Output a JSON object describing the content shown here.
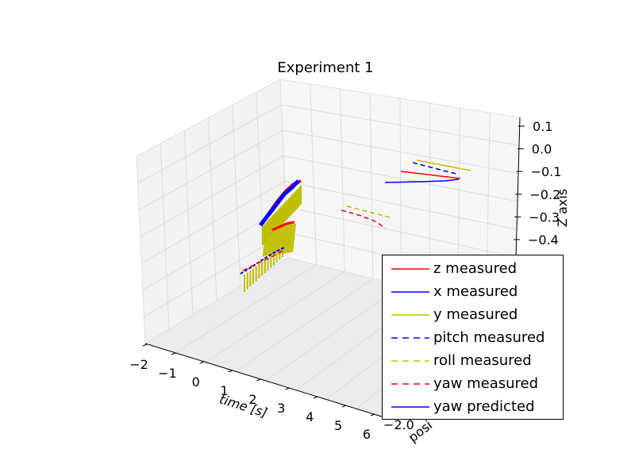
{
  "chart_data": {
    "type": "line-3d",
    "title": "Experiment 1",
    "xlabel": "time [s]",
    "ylabel": "posi",
    "zlabel": "Z axis",
    "x_ticks": [
      "−2",
      "−1",
      "0",
      "1",
      "2",
      "3",
      "4",
      "5",
      "6"
    ],
    "y_ticks": [
      "−2.0"
    ],
    "z_ticks": [
      "0.1",
      "0.0",
      "−0.1",
      "−0.2",
      "−0.3",
      "−0.4"
    ],
    "grid": true,
    "legend_position": "lower-right",
    "legend": [
      {
        "label": "z measured",
        "color": "#ff0000",
        "style": "solid"
      },
      {
        "label": "x measured",
        "color": "#0000ff",
        "style": "solid"
      },
      {
        "label": "y measured",
        "color": "#bfbf00",
        "style": "solid"
      },
      {
        "label": "pitch measured",
        "color": "#0000ff",
        "style": "dashed"
      },
      {
        "label": "roll measured",
        "color": "#bfbf00",
        "style": "dashed"
      },
      {
        "label": "yaw measured",
        "color": "#ff0000",
        "style": "dashed"
      },
      {
        "label": "yaw predicted",
        "color": "#0000ff",
        "style": "solid"
      }
    ]
  }
}
